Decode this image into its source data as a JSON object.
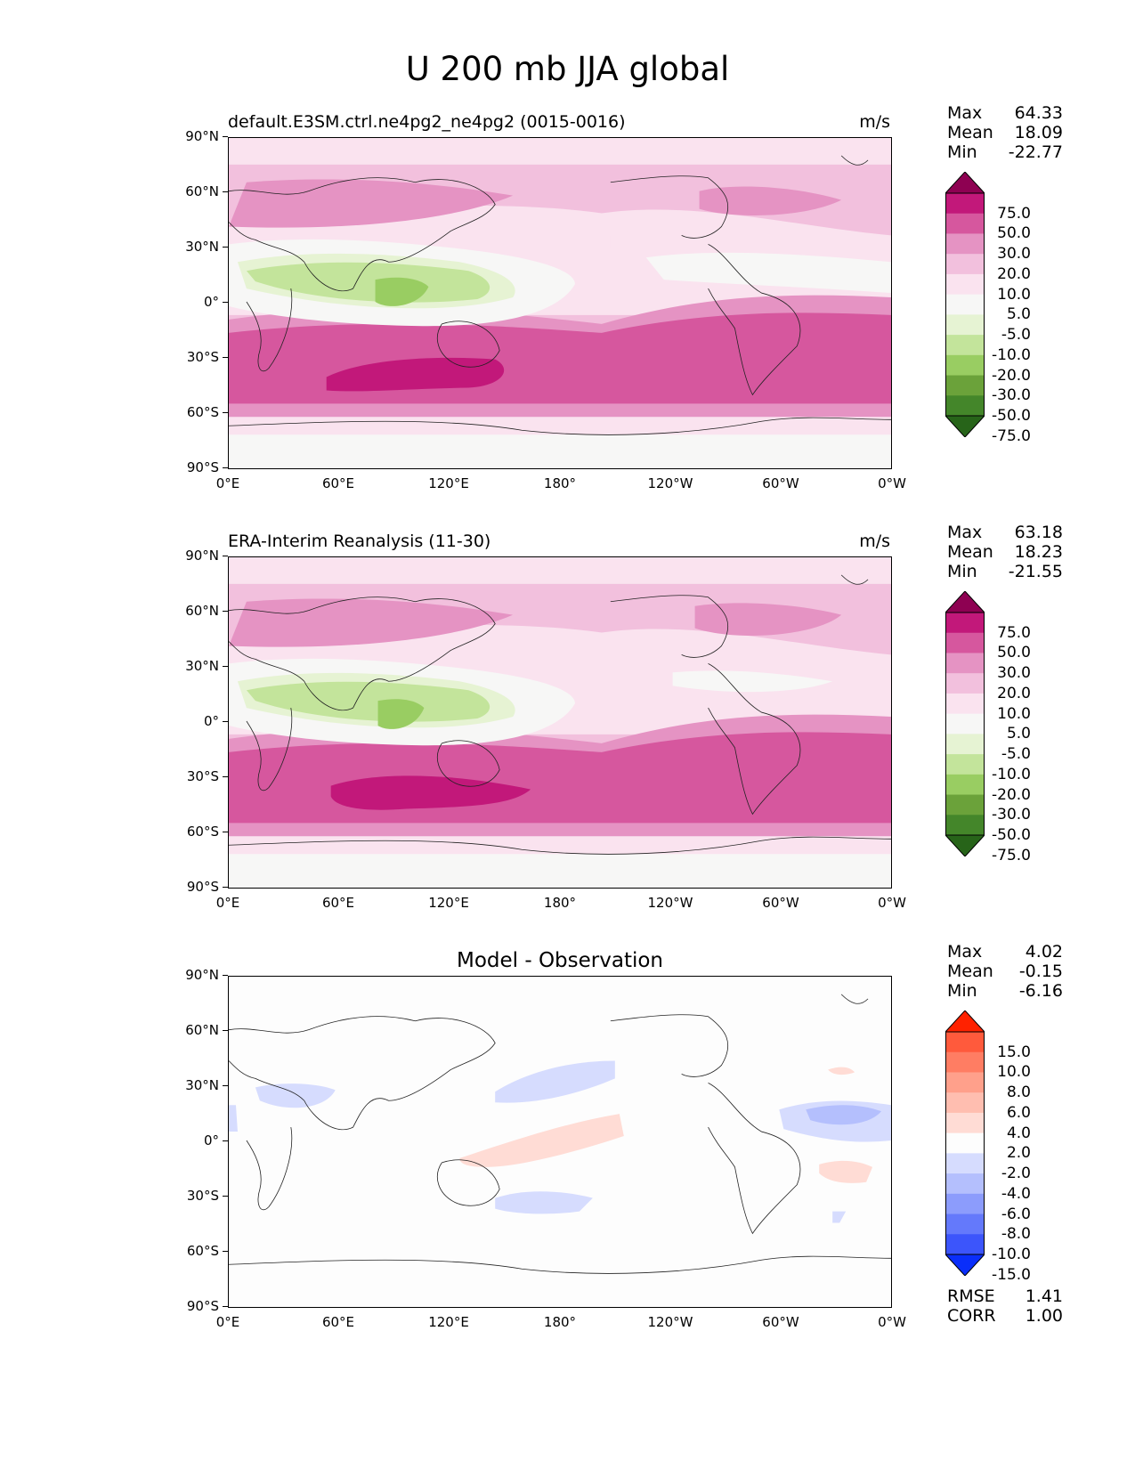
{
  "figure": {
    "title": "U 200 mb JJA global"
  },
  "axes": {
    "lat_ticks": [
      "90°N",
      "60°N",
      "30°N",
      "0°",
      "30°S",
      "60°S",
      "90°S"
    ],
    "lon_ticks": [
      "0°E",
      "60°E",
      "120°E",
      "180°",
      "120°W",
      "60°W",
      "0°W"
    ]
  },
  "panels": [
    {
      "title_left": "default.E3SM.ctrl.ne4pg2_ne4pg2 (0015-0016)",
      "title_right": "m/s",
      "title_center": "",
      "stats": {
        "max_label": "Max",
        "max": "64.33",
        "mean_label": "Mean",
        "mean": "18.09",
        "min_label": "Min",
        "min": "-22.77"
      },
      "colorbar": {
        "levels": [
          "75.0",
          "50.0",
          "30.0",
          "20.0",
          "10.0",
          "5.0",
          "-5.0",
          "-10.0",
          "-20.0",
          "-30.0",
          "-50.0",
          "-75.0"
        ],
        "colors": [
          "#8e0152",
          "#c2187a",
          "#d6579e",
          "#e593c3",
          "#f2c0dd",
          "#fae3ef",
          "#f7f7f6",
          "#e6f3d3",
          "#c3e49b",
          "#99cd62",
          "#6ba23a",
          "#44862a",
          "#276419"
        ]
      }
    },
    {
      "title_left": "ERA-Interim Reanalysis (11-30)",
      "title_right": "m/s",
      "title_center": "",
      "stats": {
        "max_label": "Max",
        "max": "63.18",
        "mean_label": "Mean",
        "mean": "18.23",
        "min_label": "Min",
        "min": "-21.55"
      },
      "colorbar": {
        "levels": [
          "75.0",
          "50.0",
          "30.0",
          "20.0",
          "10.0",
          "5.0",
          "-5.0",
          "-10.0",
          "-20.0",
          "-30.0",
          "-50.0",
          "-75.0"
        ],
        "colors": [
          "#8e0152",
          "#c2187a",
          "#d6579e",
          "#e593c3",
          "#f2c0dd",
          "#fae3ef",
          "#f7f7f6",
          "#e6f3d3",
          "#c3e49b",
          "#99cd62",
          "#6ba23a",
          "#44862a",
          "#276419"
        ]
      }
    },
    {
      "title_left": "",
      "title_right": "",
      "title_center": "Model - Observation",
      "stats": {
        "max_label": "Max",
        "max": "4.02",
        "mean_label": "Mean",
        "mean": "-0.15",
        "min_label": "Min",
        "min": "-6.16"
      },
      "colorbar": {
        "levels": [
          "15.0",
          "10.0",
          "8.0",
          "6.0",
          "4.0",
          "2.0",
          "-2.0",
          "-4.0",
          "-6.0",
          "-8.0",
          "-10.0",
          "-15.0"
        ],
        "colors": [
          "#ff2200",
          "#ff5a3c",
          "#ff7d63",
          "#ffa08b",
          "#ffbeb0",
          "#ffdcd5",
          "#fdfdfd",
          "#d6dcfe",
          "#b4bffd",
          "#8c9cfc",
          "#6479fb",
          "#3c55fb",
          "#0a2efa"
        ]
      },
      "extra": {
        "rmse_label": "RMSE",
        "rmse": "1.41",
        "corr_label": "CORR",
        "corr": "1.00"
      }
    }
  ]
}
